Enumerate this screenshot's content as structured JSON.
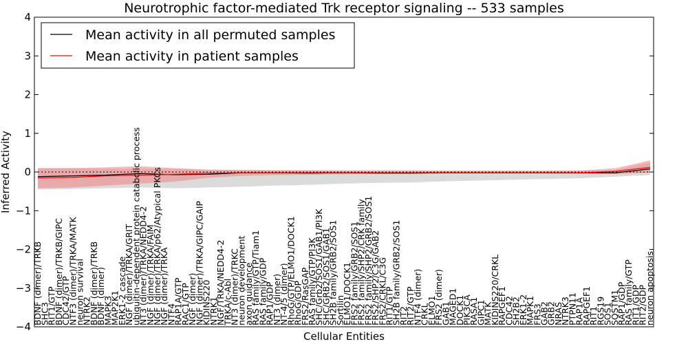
{
  "chart_data": {
    "type": "line",
    "title": "Neurotrophic factor-mediated Trk receptor signaling -- 533 samples",
    "xlabel": "Cellular Entities",
    "ylabel": "Inferred Activity",
    "ylim": [
      -4,
      4
    ],
    "yticks": [
      -4,
      -3,
      -2,
      -1,
      0,
      1,
      2,
      3,
      4
    ],
    "grid": false,
    "legend_position": "top-left",
    "colors": {
      "permuted": "#000000",
      "patient": "#ff0000",
      "permuted_band": "#b0b0b0",
      "patient_band": "#f08080"
    },
    "categories": [
      "BDNF (dimer)/TRKB",
      "SHC3",
      "RIT1/GTP",
      "BDNF (dimer)/TRKB/GIPC",
      "CDC42/GTP",
      "NTF3 (dimer)/TRKA/MATK",
      "neuron survival",
      "NTRK2",
      "BDNF (dimer)/TRKB",
      "BDNF (dimer)",
      "MAPK3",
      "MAP2K1",
      "ERK1-2 cascade",
      "NGF (dimer)/TRKA/GRIT",
      "ubiquitin-dependent protein catabolic process",
      "NT3 (dimer)/TRKA/NEDD4-2",
      "NGF (dimer)/TRKA/FAIM",
      "NGF (dimer)/TRKA/p62/Atypical PKCs",
      "NGF (dimer)/TRKA",
      "NTF4",
      "RAP1A/GTP",
      "RAC1/GTP",
      "NGF (dimer)",
      "NGF (dimer)/TRKA/GIPC/GAIP",
      "KIDINS220",
      "NTRK1",
      "NGF/TRKA/NEDD4-2",
      "TRKA/c-Abl",
      "NT3 (dimer)/TRKC",
      "neuron development",
      "axon guidance",
      "RAS family/GTP/Tiam1",
      "RAS family/GDP",
      "RAP1/GDP",
      "NT3 (dimer)",
      "NT-4/5 (dimer)",
      "RhoG/GTP/ELMO1/DOCK1",
      "RhoG/GDP",
      "FRS2/RasGAP",
      "RAS family/GTP/PI3K",
      "SHC/Grb2/SOS1/GAB1/PI3K",
      "SHC/GRB2/SOS1/GAB1",
      "SH2B family/GRB2/SOS1",
      "Sortilin",
      "ELMO1/DOCK1",
      "FRS2 family/GRB2/SOS1",
      "FRS2 family/SHP2/CRK family",
      "FRS2 family/SHP2/GRB2/SOS1",
      "FRS2/SHP2/C3G/GAB2",
      "FRS2/CRKL/C3G",
      "RIT1/GTP",
      "SH2B family/GRB2/SOS1",
      "RIT2",
      "RIT2/GTP",
      "NTF4 (dimer)",
      "CRKL",
      "ELMO1",
      "FRS2 (dimer)",
      "GAB1",
      "MAGED1",
      "DOCK1",
      "PIK3CA",
      "RASA1",
      "GIPC1",
      "MATK",
      "KIDINS220/CRKL",
      "RAPGEF1",
      "CDC42",
      "SH2B2",
      "ERK1-2",
      "MAPK1",
      "FRS3",
      "GAB2",
      "GRB2",
      "NRAS",
      "NTRK3",
      "PTPN11",
      "RAP1A",
      "RAPGEF1",
      "RIT1",
      "RGS19",
      "SOS1",
      "SQSTM1",
      "RAP1/GDP",
      "RAS family/GTP",
      "RIT1/GDP",
      "RIT2/GDP",
      "neuron apoptosis"
    ],
    "label_slots": [
      0,
      1,
      2,
      3,
      4,
      5,
      6,
      7,
      8,
      9,
      10,
      11,
      12,
      13,
      14,
      15,
      16,
      17,
      18,
      19,
      20,
      21,
      22,
      23,
      24,
      25,
      26,
      27,
      28,
      29,
      30,
      31,
      32,
      33,
      34,
      35,
      36,
      37,
      38,
      39,
      40,
      41,
      42,
      43,
      44,
      45,
      46,
      47,
      48,
      49,
      50,
      51,
      52,
      53,
      54,
      55,
      56,
      57,
      58,
      59,
      60,
      61,
      62,
      63,
      64,
      65,
      66,
      67,
      68,
      69,
      70,
      71,
      72,
      73,
      74,
      75,
      76,
      77,
      78,
      79,
      80,
      81,
      82,
      83,
      84,
      85,
      86,
      87,
      88,
      89,
      90,
      91,
      92,
      93,
      94,
      95,
      96,
      97,
      98,
      99,
      100,
      101,
      102,
      103,
      104,
      105,
      106,
      107,
      108,
      109,
      110,
      111,
      112,
      113,
      114,
      115,
      116,
      117,
      118,
      119,
      120,
      121,
      122,
      123,
      124,
      125,
      126,
      127,
      128,
      129,
      130,
      131,
      132,
      133,
      134,
      135,
      136,
      137,
      138,
      139,
      140,
      141,
      142,
      143,
      144,
      145,
      146,
      147,
      148,
      149,
      150,
      151,
      152,
      153,
      154,
      155,
      156,
      157,
      158,
      159,
      160,
      161,
      162,
      163,
      164,
      165,
      166,
      167,
      168,
      169,
      170,
      171,
      172,
      173,
      174,
      175,
      176,
      177,
      178,
      179,
      180,
      181,
      182,
      183,
      184,
      185,
      186,
      187,
      188,
      189,
      190,
      191,
      192,
      193,
      194,
      195,
      196,
      197,
      198,
      199,
      200,
      201,
      202,
      203,
      204,
      205,
      206,
      207,
      208,
      209,
      210,
      211,
      212,
      213,
      214,
      215,
      216,
      217,
      218,
      219,
      220,
      221,
      222,
      223,
      224,
      225,
      226,
      227,
      228,
      229,
      230,
      231,
      232,
      233,
      234,
      235,
      236,
      237,
      238,
      239,
      240,
      241,
      242,
      243,
      244,
      245,
      246,
      247,
      248,
      249,
      250,
      251,
      252,
      253,
      254,
      255,
      256,
      257,
      258,
      259,
      260,
      261,
      262,
      263,
      264,
      265,
      266,
      267,
      268,
      269,
      270,
      271,
      272,
      273,
      274,
      275,
      276,
      277,
      278,
      279,
      280,
      281,
      282,
      283,
      284,
      285,
      286,
      287,
      288,
      289,
      290,
      291,
      292,
      293,
      294,
      295,
      296,
      297,
      298,
      299,
      300,
      301,
      302,
      303,
      304,
      305,
      306,
      307,
      308,
      309,
      310,
      311,
      312,
      313,
      314,
      315,
      316,
      317,
      318,
      319,
      320,
      321,
      322,
      323,
      324,
      325,
      326,
      327,
      328,
      329,
      330,
      331,
      332,
      333,
      334,
      335,
      336,
      337,
      338,
      339,
      340,
      341,
      342,
      343,
      344,
      345,
      346,
      347,
      348,
      349,
      350,
      351,
      352,
      353,
      354,
      355,
      356,
      357,
      358,
      359,
      360,
      361,
      362,
      363,
      364,
      365,
      366,
      367,
      368,
      369,
      370,
      371,
      372,
      373,
      374,
      375,
      376,
      377,
      378,
      379,
      380,
      381,
      382,
      383,
      384,
      385,
      386,
      387,
      388,
      389,
      390,
      391,
      392,
      393,
      394,
      395,
      396,
      397,
      398,
      399,
      400,
      401,
      402,
      403,
      404,
      405,
      406,
      407,
      408,
      409,
      410,
      411,
      412,
      413,
      414,
      415,
      416,
      417,
      418,
      419,
      420,
      421,
      422,
      423,
      424,
      425,
      426,
      427,
      428,
      429,
      430,
      431,
      432,
      433,
      434,
      435,
      436,
      437,
      438,
      439,
      440,
      441,
      442,
      443,
      444,
      445,
      446,
      447,
      448,
      449,
      450,
      451,
      452,
      453,
      454,
      455,
      456,
      457,
      458,
      459,
      460,
      461,
      462,
      463,
      464,
      465,
      466,
      467,
      468,
      469,
      470,
      471,
      472,
      473,
      474,
      475,
      476,
      477,
      478,
      479,
      480,
      481,
      482,
      483,
      484,
      485,
      486,
      487,
      488,
      489,
      490,
      491,
      492,
      493,
      494,
      495,
      496,
      497,
      498,
      499,
      500,
      501,
      502,
      503,
      504,
      505,
      506,
      507,
      508,
      509,
      510,
      511,
      512,
      513,
      514,
      515,
      516,
      517,
      518,
      519,
      520,
      521,
      522,
      523,
      524,
      525,
      526,
      527,
      528,
      529,
      530,
      531,
      532,
      533,
      534,
      535,
      536,
      537,
      538,
      539,
      540,
      541,
      542,
      543,
      544,
      545,
      546,
      547,
      548,
      549,
      550,
      551,
      552,
      553,
      554,
      555,
      556,
      557,
      558,
      559,
      560,
      561,
      562,
      563,
      564,
      565,
      566,
      567,
      568,
      569,
      570,
      571,
      572,
      573,
      574,
      575,
      576,
      577,
      578,
      579,
      580,
      581,
      582,
      583,
      584,
      585,
      586,
      587,
      588,
      589,
      590,
      591,
      592,
      593,
      594,
      595,
      596,
      597,
      598,
      599,
      600,
      601,
      602,
      603,
      604,
      605,
      606,
      607,
      608,
      609,
      610,
      611,
      612,
      613,
      614,
      615,
      616,
      617,
      618,
      619,
      620,
      621,
      622,
      623,
      624,
      625,
      626,
      627,
      628,
      629,
      630,
      631,
      632,
      633,
      634,
      635,
      636,
      637,
      638,
      639,
      640,
      641,
      642,
      643,
      644,
      645,
      646,
      647,
      648,
      649,
      650,
      651,
      652,
      653,
      654,
      655,
      656,
      657,
      658,
      659,
      660,
      661,
      662,
      663,
      664,
      665,
      666,
      667,
      668,
      669,
      670,
      671,
      672,
      673,
      674,
      675,
      676,
      677,
      678,
      679,
      680,
      681,
      682,
      683,
      684,
      685,
      686,
      687,
      688,
      689,
      690,
      691,
      692,
      693,
      694,
      695,
      696,
      697,
      698,
      699,
      700,
      701,
      702,
      703,
      704,
      705,
      706,
      707,
      708,
      709,
      710,
      711,
      712,
      713,
      714,
      715,
      716,
      717,
      718,
      719,
      720,
      721,
      722,
      723,
      724,
      725,
      726,
      727,
      728,
      729,
      730,
      731,
      732,
      733,
      734,
      735,
      736,
      737,
      738,
      739,
      740,
      741,
      742,
      743,
      744,
      745,
      746,
      747,
      748,
      749,
      750,
      751,
      752,
      753,
      754,
      755,
      756,
      757,
      758,
      759,
      760,
      761,
      762,
      763,
      764,
      765,
      766,
      767,
      768,
      769,
      770,
      771,
      772,
      773,
      774,
      775,
      776,
      777,
      778,
      779,
      780,
      781,
      782,
      783,
      784,
      785,
      786,
      787,
      788,
      789,
      790,
      791,
      792,
      793,
      794,
      795,
      796,
      797,
      798,
      799,
      800,
      801,
      802,
      803,
      804,
      805,
      806,
      807,
      808,
      809,
      810,
      811,
      812,
      813,
      814,
      815,
      816,
      817,
      818,
      819,
      820,
      821,
      822,
      823,
      824,
      825,
      826,
      827,
      828,
      829,
      830,
      831,
      832,
      833,
      834,
      835,
      836,
      837,
      838,
      839,
      840,
      841,
      842,
      843,
      844,
      845,
      846,
      847,
      848,
      849,
      850,
      851,
      852,
      853,
      854,
      855,
      856,
      857,
      858,
      859,
      860,
      861,
      862,
      863,
      864,
      865,
      866,
      867,
      868,
      869,
      870,
      871,
      872,
      873,
      874,
      875,
      876,
      877,
      878,
      879,
      880,
      881,
      882,
      883,
      884,
      885,
      886,
      887,
      888,
      889,
      890,
      891,
      892,
      893,
      894,
      895,
      896,
      897,
      898,
      899,
      900,
      901,
      902,
      903,
      904,
      905,
      906,
      907,
      908,
      909,
      910,
      911,
      912,
      913,
      914,
      915,
      916,
      917,
      918,
      919,
      920,
      921,
      922,
      923,
      924,
      925,
      926,
      927,
      928,
      929,
      930,
      931,
      932,
      933,
      934,
      935,
      936,
      937,
      938,
      939,
      940,
      941,
      942,
      943,
      944,
      945,
      946,
      947,
      948,
      949,
      950,
      951,
      952,
      953,
      954,
      955,
      956,
      957,
      958,
      959,
      960,
      961,
      962,
      963,
      964,
      965,
      966,
      967,
      968,
      969,
      970,
      971,
      972,
      973,
      974,
      975,
      976,
      977,
      978,
      979,
      980,
      981,
      982,
      983,
      984,
      985,
      986,
      987,
      988,
      989,
      990,
      991,
      992,
      993,
      994,
      995,
      996,
      997,
      998,
      999
    ],
    "series": [
      {
        "name": "Mean activity in all permuted samples",
        "color": "#000000",
        "x": [
          0,
          5,
          10,
          15,
          20,
          25,
          30,
          35,
          40,
          45,
          50,
          55,
          60,
          65,
          70,
          75,
          80,
          85,
          90
        ],
        "values": [
          -0.12,
          -0.1,
          -0.08,
          -0.04,
          -0.07,
          -0.06,
          -0.02,
          -0.02,
          -0.03,
          -0.02,
          -0.03,
          -0.03,
          -0.02,
          -0.02,
          -0.02,
          -0.02,
          -0.02,
          -0.02,
          0.08
        ],
        "band_low": [
          -0.45,
          -0.44,
          -0.42,
          -0.4,
          -0.42,
          -0.4,
          -0.38,
          -0.35,
          -0.33,
          -0.3,
          -0.28,
          -0.27,
          -0.24,
          -0.22,
          -0.2,
          -0.18,
          -0.16,
          -0.12,
          -0.08
        ],
        "band_high": [
          0.1,
          0.1,
          0.08,
          0.08,
          0.08,
          0.06,
          0.06,
          0.05,
          0.05,
          0.05,
          0.05,
          0.05,
          0.04,
          0.04,
          0.04,
          0.04,
          0.04,
          0.05,
          0.25
        ]
      },
      {
        "name": "Mean activity in patient samples",
        "color": "#ff0000",
        "x": [
          0,
          5,
          10,
          15,
          20,
          25,
          30,
          35,
          40,
          45,
          50,
          55,
          60,
          65,
          70,
          75,
          80,
          85,
          90
        ],
        "values": [
          -0.15,
          -0.14,
          -0.1,
          -0.08,
          -0.06,
          -0.03,
          -0.02,
          -0.02,
          -0.02,
          -0.02,
          -0.02,
          -0.02,
          -0.02,
          -0.02,
          -0.02,
          -0.02,
          -0.02,
          0.02,
          0.12
        ],
        "band_low": [
          -0.42,
          -0.4,
          -0.35,
          -0.3,
          -0.25,
          -0.15,
          -0.1,
          -0.08,
          -0.07,
          -0.06,
          -0.05,
          -0.05,
          -0.04,
          -0.04,
          -0.04,
          -0.04,
          -0.05,
          -0.05,
          -0.02
        ],
        "band_high": [
          0.1,
          0.1,
          0.12,
          0.15,
          0.1,
          0.06,
          0.05,
          0.04,
          0.04,
          0.03,
          0.03,
          0.03,
          0.03,
          0.03,
          0.03,
          0.03,
          0.04,
          0.1,
          0.3
        ]
      }
    ]
  }
}
